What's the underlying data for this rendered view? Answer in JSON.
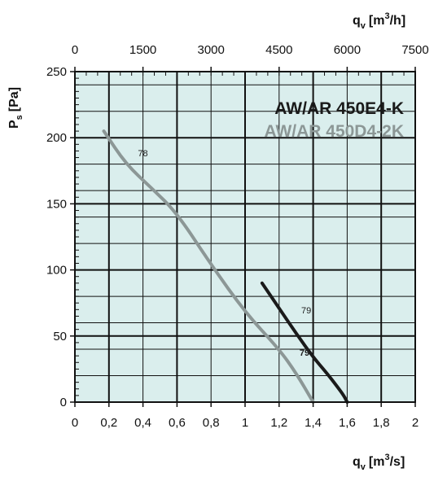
{
  "chart_data": {
    "type": "line",
    "background_color": "#daeeed",
    "grid": true,
    "x_bottom": {
      "label_main": "q",
      "label_sub": "v",
      "label_unit": "[m",
      "label_sup": "3",
      "label_unit_end": "/s]",
      "range": [
        0,
        2
      ],
      "ticks": [
        "0",
        "0,2",
        "0,4",
        "0,6",
        "0,8",
        "1",
        "1,2",
        "1,4",
        "1,6",
        "1,8",
        "2"
      ]
    },
    "x_top": {
      "label_main": "q",
      "label_sub": "v",
      "label_unit": "[m",
      "label_sup": "3",
      "label_unit_end": "/h]",
      "range": [
        0,
        7500
      ],
      "ticks": [
        "0",
        "1500",
        "3000",
        "4500",
        "6000",
        "7500"
      ]
    },
    "y": {
      "label_main": "P",
      "label_sub": "s",
      "label_unit": "[Pa]",
      "range": [
        0,
        250
      ],
      "ticks": [
        "0",
        "50",
        "100",
        "150",
        "200",
        "250"
      ]
    },
    "series": [
      {
        "name": "AW/AR 450E4-K",
        "color": "#1a1a1a",
        "x": [
          1.1,
          1.2,
          1.3,
          1.4,
          1.48,
          1.54,
          1.58,
          1.6
        ],
        "y": [
          90,
          71,
          52,
          34,
          22,
          12,
          5,
          0
        ],
        "labels": [
          {
            "text": "79",
            "x": 1.33,
            "y": 67
          },
          {
            "text": "79",
            "x": 1.32,
            "y": 35
          }
        ]
      },
      {
        "name": "AW/AR 450D4-2K",
        "color": "#8c9796",
        "x": [
          0.17,
          0.3,
          0.45,
          0.6,
          0.8,
          1.0,
          1.2,
          1.3,
          1.4
        ],
        "y": [
          205,
          180,
          162,
          143,
          104,
          68,
          40,
          22,
          0
        ],
        "labels": [
          {
            "text": "78",
            "x": 0.37,
            "y": 186
          }
        ]
      }
    ]
  }
}
